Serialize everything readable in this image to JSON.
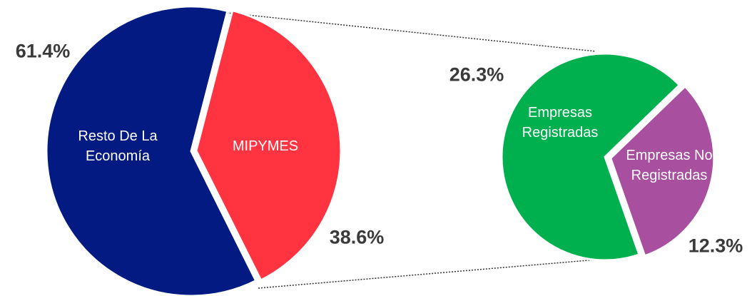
{
  "chart_data": [
    {
      "type": "pie",
      "categories": [
        "Resto De La Economía",
        "MIPYMES"
      ],
      "values": [
        61.4,
        38.6
      ],
      "value_labels": [
        "61.4%",
        "38.6%"
      ],
      "colors": [
        "#021a82",
        "#ff3440"
      ]
    },
    {
      "type": "pie",
      "categories": [
        "Empresas Registradas",
        "Empresas No Registradas"
      ],
      "values": [
        26.3,
        12.3
      ],
      "value_labels": [
        "26.3%",
        "12.3%"
      ],
      "colors": [
        "#00b04f",
        "#a84f9f"
      ]
    }
  ]
}
